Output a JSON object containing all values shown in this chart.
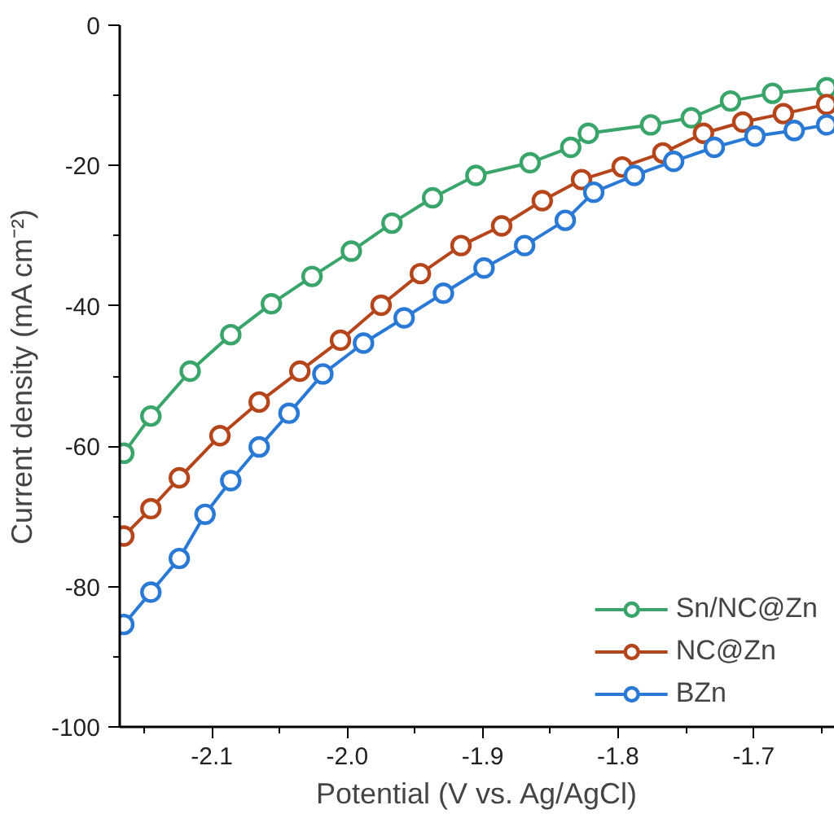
{
  "chart_data": {
    "type": "line",
    "xlabel": "Potential (V vs. Ag/AgCl)",
    "ylabel": "Current density (mA cm⁻²)",
    "xlim": [
      -2.168,
      -1.64
    ],
    "ylim": [
      -100,
      0
    ],
    "xticks": [
      {
        "value": -2.15,
        "label": null
      },
      {
        "value": -2.1,
        "label": "-2.1"
      },
      {
        "value": -2.05,
        "label": null
      },
      {
        "value": -2.0,
        "label": "-2.0"
      },
      {
        "value": -1.95,
        "label": null
      },
      {
        "value": -1.9,
        "label": "-1.9"
      },
      {
        "value": -1.85,
        "label": null
      },
      {
        "value": -1.8,
        "label": "-1.8"
      },
      {
        "value": -1.75,
        "label": null
      },
      {
        "value": -1.7,
        "label": "-1.7"
      },
      {
        "value": -1.65,
        "label": null
      }
    ],
    "yticks": [
      -100,
      {
        "value": -90,
        "label": null
      },
      -80,
      {
        "value": -70,
        "label": null
      },
      -60,
      {
        "value": -50,
        "label": null
      },
      -40,
      {
        "value": -30,
        "label": null
      },
      -20,
      {
        "value": -10,
        "label": null
      },
      0
    ],
    "grid": false,
    "legend": "bottom right",
    "marker": "circle",
    "line_style": "solid",
    "series": [
      {
        "name": "Sn/NC@Zn",
        "color": "#3aa56a",
        "x": [
          -2.165,
          -2.145,
          -2.116,
          -2.086,
          -2.056,
          -2.026,
          -1.997,
          -1.967,
          -1.937,
          -1.905,
          -1.865,
          -1.835,
          -1.822,
          -1.776,
          -1.746,
          -1.717,
          -1.686,
          -1.646
        ],
        "values": [
          -61.0,
          -55.7,
          -49.3,
          -44.1,
          -39.7,
          -35.8,
          -32.2,
          -28.2,
          -24.6,
          -21.4,
          -19.6,
          -17.4,
          -15.4,
          -14.2,
          -13.2,
          -10.8,
          -9.7,
          -8.9
        ]
      },
      {
        "name": "NC@Zn",
        "color": "#b5451b",
        "x": [
          -2.165,
          -2.145,
          -2.124,
          -2.094,
          -2.065,
          -2.035,
          -2.005,
          -1.975,
          -1.946,
          -1.916,
          -1.886,
          -1.856,
          -1.827,
          -1.797,
          -1.767,
          -1.737,
          -1.708,
          -1.678,
          -1.646
        ],
        "values": [
          -72.8,
          -68.9,
          -64.5,
          -58.5,
          -53.7,
          -49.3,
          -44.9,
          -39.9,
          -35.4,
          -31.4,
          -28.6,
          -25.0,
          -22.0,
          -20.2,
          -18.2,
          -15.4,
          -13.8,
          -12.6,
          -11.3
        ]
      },
      {
        "name": "BZn",
        "color": "#2a7ad5",
        "x": [
          -2.165,
          -2.145,
          -2.124,
          -2.105,
          -2.086,
          -2.065,
          -2.043,
          -2.018,
          -1.988,
          -1.958,
          -1.929,
          -1.899,
          -1.869,
          -1.839,
          -1.818,
          -1.788,
          -1.759,
          -1.729,
          -1.699,
          -1.67,
          -1.646
        ],
        "values": [
          -85.4,
          -80.8,
          -76.0,
          -69.7,
          -64.9,
          -60.1,
          -55.3,
          -49.7,
          -45.3,
          -41.7,
          -38.2,
          -34.6,
          -31.4,
          -27.8,
          -23.8,
          -21.4,
          -19.4,
          -17.4,
          -15.8,
          -15.0,
          -14.2
        ]
      }
    ]
  }
}
